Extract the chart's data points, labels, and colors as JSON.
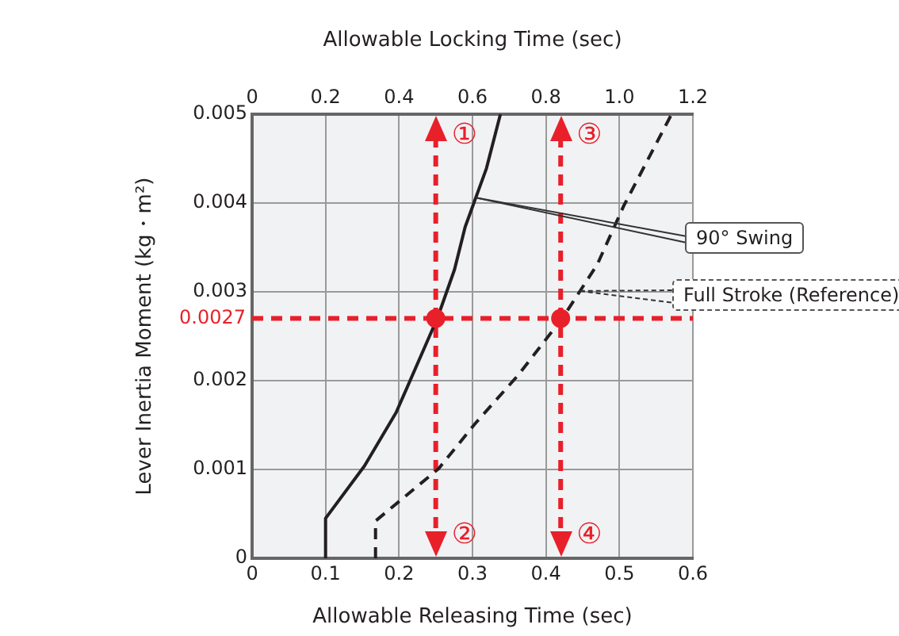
{
  "chart_data": {
    "type": "line",
    "xlabel": "Allowable Releasing Time (sec)",
    "x2label": "Allowable Locking Time (sec)",
    "ylabel": "Lever Inertia Moment (kg・m²)",
    "xlim": [
      0,
      0.6
    ],
    "xticks": [
      0,
      0.1,
      0.2,
      0.3,
      0.4,
      0.5,
      0.6
    ],
    "x2lim": [
      0,
      1.2
    ],
    "x2ticks": [
      0,
      0.2,
      0.4,
      0.6,
      0.8,
      {
        "value": 1,
        "label": "1.0"
      },
      1.2
    ],
    "ylim": [
      0,
      0.005
    ],
    "yticks": [
      0,
      0.001,
      0.002,
      0.003,
      0.004,
      0.005
    ],
    "grid": true,
    "legend": false,
    "marker": "none",
    "series": [
      {
        "name": "90° Swing",
        "color": "#231f20",
        "line_style": "solid",
        "x": [
          0.1,
          0.1,
          0.153,
          0.196,
          0.2525,
          0.2755,
          0.29,
          0.319,
          0.338
        ],
        "values": [
          0,
          0.00045,
          0.00104,
          0.00164,
          0.00271,
          0.00325,
          0.00373,
          0.00439,
          0.005
        ]
      },
      {
        "name": "Full Stroke (Reference)",
        "color": "#231f20",
        "line_style": "dashed",
        "x": [
          0.168,
          0.168,
          0.254,
          0.304,
          0.362,
          0.423,
          0.47,
          0.506,
          0.571
        ],
        "values": [
          0,
          0.00042,
          0.00101,
          0.00152,
          0.00206,
          0.00271,
          0.00331,
          0.00397,
          0.005
        ]
      },
      {
        "type": "scatter",
        "color": "#e8202a",
        "marker": "circle",
        "x": [
          0.25,
          0.42
        ],
        "values": [
          0.0027,
          0.0027
        ]
      }
    ],
    "ref_lines": [
      {
        "axis": "x",
        "value": 0.25,
        "color": "#e8202a",
        "line_style": "dashed"
      },
      {
        "axis": "x",
        "value": 0.42,
        "color": "#e8202a",
        "line_style": "dashed"
      },
      {
        "axis": "y",
        "value": 0.0027,
        "label": "0.0027",
        "color": "#e8202a",
        "line_style": "dashed"
      }
    ],
    "annotations": [
      "①",
      "②",
      "③",
      "④"
    ]
  }
}
